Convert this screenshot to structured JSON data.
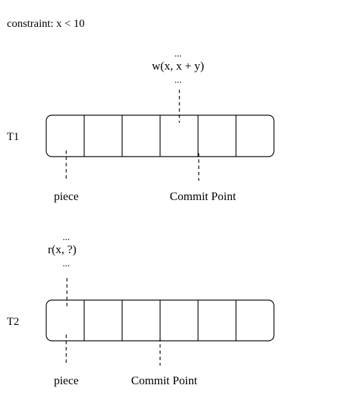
{
  "constraint": "constraint: x < 10",
  "t1": {
    "label": "T1",
    "op_above": "...",
    "op": "w(x, x + y)",
    "op_below": "...",
    "piece_label": "piece",
    "commit_label": "Commit Point",
    "cell_count": 6
  },
  "t2": {
    "label": "T2",
    "op_above": "...",
    "op": "r(x, ?)",
    "op_below": "...",
    "piece_label": "piece",
    "commit_label": "Commit Point",
    "cell_count": 6
  }
}
